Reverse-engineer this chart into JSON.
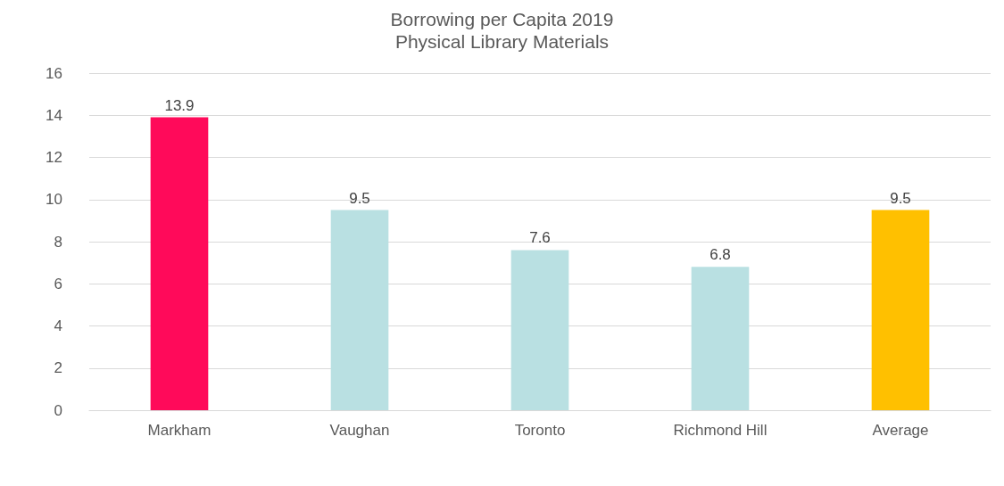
{
  "chart_data": {
    "type": "bar",
    "title": "Borrowing per Capita 2019",
    "subtitle": "Physical Library Materials",
    "categories": [
      "Markham",
      "Vaughan",
      "Toronto",
      "Richmond Hill",
      "Average"
    ],
    "values": [
      13.9,
      9.5,
      7.6,
      6.8,
      9.5
    ],
    "colors": [
      "#ff0a5a",
      "#b9e0e2",
      "#b9e0e2",
      "#b9e0e2",
      "#ffc000"
    ],
    "ylim": [
      0,
      16
    ],
    "yticks": [
      0,
      2,
      4,
      6,
      8,
      10,
      12,
      14,
      16
    ],
    "grid": "y",
    "data_labels": true
  }
}
